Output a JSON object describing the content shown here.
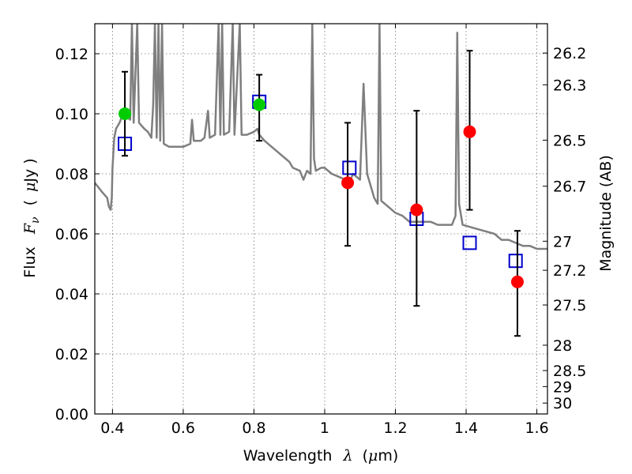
{
  "chart_data": {
    "type": "scatter",
    "xlabel": "Wavelength",
    "xlabel_symbol": "λ",
    "xlabel_unit_open": "(",
    "xlabel_unit_mu": "μ",
    "xlabel_unit_rest": "m)",
    "ylabel": "Flux",
    "ylabel_symbol": "F",
    "ylabel_subscript": "ν",
    "ylabel_unit_open": "(",
    "ylabel_unit_mu": "μ",
    "ylabel_unit_rest": "Jy )",
    "y2label": "Magnitude (AB)",
    "xlim": [
      0.35,
      1.63
    ],
    "ylim": [
      0.0,
      0.13
    ],
    "grid": true,
    "x_ticks": [
      "0.4",
      "0.6",
      "0.8",
      "1",
      "1.2",
      "1.4",
      "1.6"
    ],
    "x_tick_values": [
      0.4,
      0.6,
      0.8,
      1.0,
      1.2,
      1.4,
      1.6
    ],
    "y_ticks": [
      "0.00",
      "0.02",
      "0.04",
      "0.06",
      "0.08",
      "0.10",
      "0.12"
    ],
    "y_tick_values": [
      0.0,
      0.02,
      0.04,
      0.06,
      0.08,
      0.1,
      0.12
    ],
    "y2_ticks": [
      {
        "label": "26.2",
        "mag": 26.2
      },
      {
        "label": "26.3",
        "mag": 26.3
      },
      {
        "label": "26.5",
        "mag": 26.5
      },
      {
        "label": "26.7",
        "mag": 26.7
      },
      {
        "label": "27",
        "mag": 27.0
      },
      {
        "label": "27.2",
        "mag": 27.2
      },
      {
        "label": "27.5",
        "mag": 27.5
      },
      {
        "label": "28",
        "mag": 28.0
      },
      {
        "label": "28.5",
        "mag": 28.5
      },
      {
        "label": "29",
        "mag": 29.0
      },
      {
        "label": "30",
        "mag": 30.0
      }
    ],
    "series": [
      {
        "kind": "model_spectrum",
        "color": "#7f7f7f",
        "points": [
          [
            0.35,
            0.077
          ],
          [
            0.37,
            0.074
          ],
          [
            0.385,
            0.072
          ],
          [
            0.39,
            0.069
          ],
          [
            0.395,
            0.068
          ],
          [
            0.398,
            0.072
          ],
          [
            0.4,
            0.082
          ],
          [
            0.405,
            0.092
          ],
          [
            0.41,
            0.095
          ],
          [
            0.42,
            0.097
          ],
          [
            0.43,
            0.1
          ],
          [
            0.44,
            0.099
          ],
          [
            0.45,
            0.098
          ],
          [
            0.455,
            0.13
          ],
          [
            0.46,
            0.097
          ],
          [
            0.47,
            0.13
          ],
          [
            0.475,
            0.097
          ],
          [
            0.49,
            0.095
          ],
          [
            0.5,
            0.094
          ],
          [
            0.51,
            0.092
          ],
          [
            0.515,
            0.103
          ],
          [
            0.52,
            0.13
          ],
          [
            0.525,
            0.092
          ],
          [
            0.53,
            0.13
          ],
          [
            0.535,
            0.091
          ],
          [
            0.54,
            0.13
          ],
          [
            0.545,
            0.09
          ],
          [
            0.56,
            0.089
          ],
          [
            0.58,
            0.089
          ],
          [
            0.6,
            0.089
          ],
          [
            0.62,
            0.09
          ],
          [
            0.625,
            0.098
          ],
          [
            0.63,
            0.091
          ],
          [
            0.65,
            0.091
          ],
          [
            0.66,
            0.092
          ],
          [
            0.67,
            0.101
          ],
          [
            0.675,
            0.092
          ],
          [
            0.69,
            0.093
          ],
          [
            0.7,
            0.13
          ],
          [
            0.705,
            0.093
          ],
          [
            0.71,
            0.13
          ],
          [
            0.715,
            0.093
          ],
          [
            0.73,
            0.094
          ],
          [
            0.74,
            0.13
          ],
          [
            0.745,
            0.093
          ],
          [
            0.76,
            0.13
          ],
          [
            0.765,
            0.093
          ],
          [
            0.78,
            0.093
          ],
          [
            0.8,
            0.094
          ],
          [
            0.81,
            0.095
          ],
          [
            0.815,
            0.093
          ],
          [
            0.83,
            0.091
          ],
          [
            0.85,
            0.089
          ],
          [
            0.87,
            0.087
          ],
          [
            0.89,
            0.085
          ],
          [
            0.9,
            0.084
          ],
          [
            0.91,
            0.082
          ],
          [
            0.93,
            0.081
          ],
          [
            0.94,
            0.078
          ],
          [
            0.95,
            0.081
          ],
          [
            0.96,
            0.08
          ],
          [
            0.965,
            0.13
          ],
          [
            0.97,
            0.085
          ],
          [
            0.975,
            0.081
          ],
          [
            0.99,
            0.082
          ],
          [
            1.0,
            0.082
          ],
          [
            1.02,
            0.08
          ],
          [
            1.04,
            0.079
          ],
          [
            1.06,
            0.078
          ],
          [
            1.07,
            0.077
          ],
          [
            1.08,
            0.08
          ],
          [
            1.09,
            0.079
          ],
          [
            1.1,
            0.078
          ],
          [
            1.11,
            0.11
          ],
          [
            1.12,
            0.08
          ],
          [
            1.13,
            0.076
          ],
          [
            1.14,
            0.072
          ],
          [
            1.15,
            0.07
          ],
          [
            1.155,
            0.13
          ],
          [
            1.16,
            0.071
          ],
          [
            1.18,
            0.069
          ],
          [
            1.2,
            0.067
          ],
          [
            1.22,
            0.066
          ],
          [
            1.24,
            0.064
          ],
          [
            1.26,
            0.064
          ],
          [
            1.28,
            0.064
          ],
          [
            1.3,
            0.064
          ],
          [
            1.32,
            0.063
          ],
          [
            1.34,
            0.063
          ],
          [
            1.36,
            0.063
          ],
          [
            1.37,
            0.066
          ],
          [
            1.375,
            0.127
          ],
          [
            1.38,
            0.07
          ],
          [
            1.39,
            0.063
          ],
          [
            1.42,
            0.062
          ],
          [
            1.45,
            0.061
          ],
          [
            1.48,
            0.06
          ],
          [
            1.5,
            0.058
          ],
          [
            1.52,
            0.058
          ],
          [
            1.54,
            0.057
          ],
          [
            1.56,
            0.056
          ],
          [
            1.58,
            0.056
          ],
          [
            1.6,
            0.055
          ],
          [
            1.63,
            0.055
          ]
        ]
      },
      {
        "kind": "model_band_flux",
        "marker": "open-square",
        "color": "#0000cc",
        "points": [
          [
            0.435,
            0.09
          ],
          [
            0.815,
            0.104
          ],
          [
            1.07,
            0.082
          ],
          [
            1.26,
            0.065
          ],
          [
            1.41,
            0.057
          ],
          [
            1.54,
            0.051
          ]
        ]
      },
      {
        "kind": "detections",
        "marker": "filled-circle",
        "color": "#00cc00",
        "points": [
          {
            "x": 0.435,
            "y": 0.1,
            "yerr_low": 0.086,
            "yerr_high": 0.114
          },
          {
            "x": 0.815,
            "y": 0.103,
            "yerr_low": 0.091,
            "yerr_high": 0.113
          }
        ]
      },
      {
        "kind": "detections",
        "marker": "filled-circle",
        "color": "#ff0000",
        "points": [
          {
            "x": 1.065,
            "y": 0.077,
            "yerr_low": 0.056,
            "yerr_high": 0.097
          },
          {
            "x": 1.26,
            "y": 0.068,
            "yerr_low": 0.036,
            "yerr_high": 0.101
          },
          {
            "x": 1.41,
            "y": 0.094,
            "yerr_low": 0.068,
            "yerr_high": 0.121
          },
          {
            "x": 1.545,
            "y": 0.044,
            "yerr_low": 0.026,
            "yerr_high": 0.061
          }
        ]
      }
    ]
  }
}
